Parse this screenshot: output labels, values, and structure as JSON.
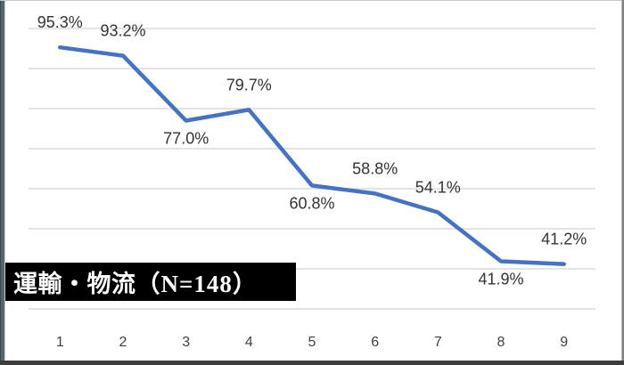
{
  "chart_data": {
    "type": "line",
    "title": "運輸・物流（N=148）",
    "title_main": "運輸・物流",
    "title_suffix": "（N=148）",
    "categories": [
      "1",
      "2",
      "3",
      "4",
      "5",
      "6",
      "7",
      "8",
      "9"
    ],
    "values": [
      95.3,
      93.2,
      77.0,
      79.7,
      60.8,
      58.8,
      54.1,
      41.9,
      41.2
    ],
    "data_labels": [
      "95.3%",
      "93.2%",
      "77.0%",
      "79.7%",
      "60.8%",
      "58.8%",
      "54.1%",
      "41.9%",
      "41.2%"
    ],
    "label_positions": [
      "above",
      "above",
      "below",
      "above",
      "below",
      "above",
      "above",
      "below",
      "above"
    ],
    "xlabel": "",
    "ylabel": "",
    "ylim": [
      30,
      100
    ],
    "grid_step": 10,
    "grid": "on",
    "legend": "none",
    "y_axis_labels": "hidden",
    "colors": {
      "line": "#4472C4",
      "grid": "#DBDBDB",
      "data_label": "#333333",
      "tick_label": "#404040",
      "title_bg": "#000000",
      "title_fg": "#FFFFFF"
    }
  }
}
